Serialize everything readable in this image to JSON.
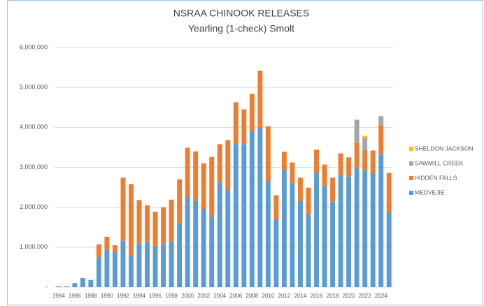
{
  "chart_data": {
    "type": "stacked-bar",
    "title": "NSRAA CHINOOK RELEASES",
    "subtitle": "Yearling (1-check) Smolt",
    "categories": [
      "1984",
      null,
      "1986",
      null,
      "1988",
      null,
      "1990",
      null,
      "1992",
      null,
      "1994",
      null,
      "1996",
      null,
      "1998",
      null,
      "2000",
      null,
      "2002",
      null,
      "2004",
      null,
      "2006",
      null,
      "2008",
      null,
      "2010",
      null,
      "2012",
      null,
      "2014",
      null,
      "2016",
      null,
      "2018",
      null,
      "2020",
      null,
      "2022",
      null,
      "2024",
      null
    ],
    "series": [
      {
        "name": "MEDVEJIE",
        "color": "#5b9bd5",
        "values": [
          20000,
          20000,
          100000,
          230000,
          180000,
          750000,
          930000,
          880000,
          1160000,
          770000,
          1090000,
          1140000,
          1020000,
          1070000,
          1140000,
          1610000,
          2240000,
          2170000,
          1950000,
          1770000,
          2630000,
          2440000,
          3580000,
          3580000,
          3910000,
          3980000,
          2650000,
          1680000,
          2930000,
          2610000,
          2160000,
          1820000,
          2860000,
          2530000,
          2140000,
          2810000,
          2770000,
          2980000,
          2930000,
          2860000,
          3330000,
          1880000
        ]
      },
      {
        "name": "HIDDEN FALLS",
        "color": "#ed7d31",
        "values": [
          null,
          null,
          null,
          null,
          null,
          320000,
          330000,
          170000,
          1580000,
          1810000,
          1090000,
          910000,
          870000,
          930000,
          1050000,
          1090000,
          1250000,
          1230000,
          1150000,
          1490000,
          950000,
          1240000,
          1050000,
          870000,
          930000,
          1440000,
          1380000,
          620000,
          460000,
          510000,
          580000,
          670000,
          580000,
          540000,
          600000,
          540000,
          480000,
          630000,
          490000,
          560000,
          720000,
          980000
        ]
      },
      {
        "name": "SAWMILL CREEK",
        "color": "#a5a5a5",
        "values": [
          null,
          null,
          null,
          null,
          null,
          null,
          null,
          null,
          null,
          null,
          null,
          null,
          null,
          null,
          null,
          null,
          null,
          null,
          null,
          null,
          null,
          null,
          null,
          null,
          null,
          null,
          null,
          null,
          null,
          null,
          null,
          null,
          null,
          null,
          null,
          null,
          null,
          580000,
          320000,
          null,
          230000,
          null
        ]
      },
      {
        "name": "SHELDON JACKSON",
        "color": "#ffc000",
        "values": [
          null,
          null,
          null,
          null,
          null,
          null,
          null,
          null,
          null,
          null,
          null,
          null,
          null,
          null,
          null,
          null,
          null,
          null,
          null,
          null,
          null,
          null,
          null,
          null,
          null,
          null,
          null,
          null,
          null,
          null,
          null,
          null,
          null,
          null,
          null,
          null,
          null,
          null,
          50000,
          null,
          null,
          null
        ]
      }
    ],
    "ylim": [
      0,
      6000000
    ],
    "yticks": [
      {
        "value": 0,
        "label": "-"
      },
      {
        "value": 1000000,
        "label": "1,000,000"
      },
      {
        "value": 2000000,
        "label": "2,000,000"
      },
      {
        "value": 3000000,
        "label": "3,000,000"
      },
      {
        "value": 4000000,
        "label": "4,000,000"
      },
      {
        "value": 5000000,
        "label": "5,000,000"
      },
      {
        "value": 6000000,
        "label": "6,000,000"
      }
    ],
    "grid": true,
    "legend": "right"
  }
}
